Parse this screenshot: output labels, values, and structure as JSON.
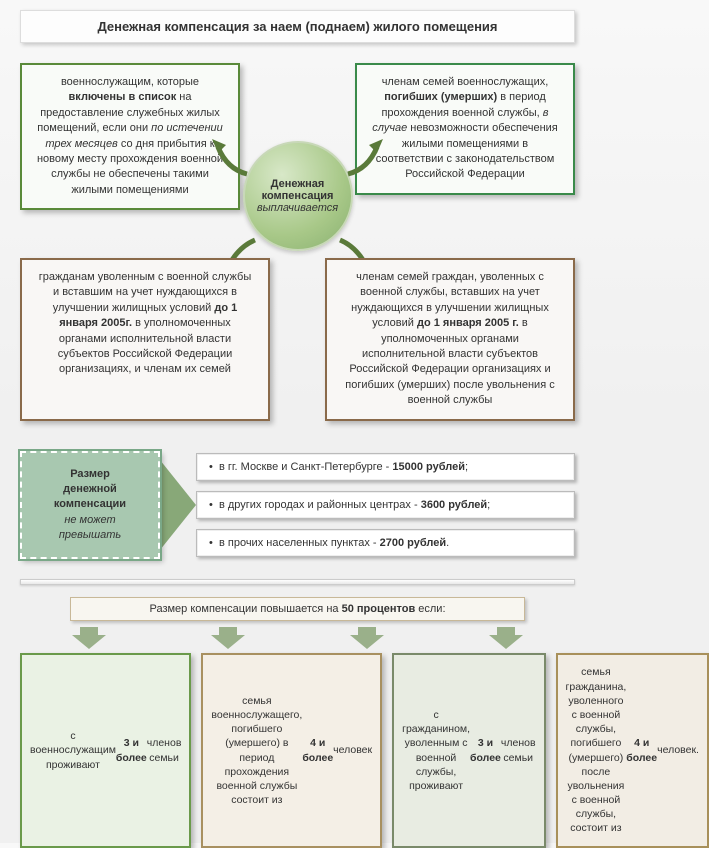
{
  "title": "Денежная компенсация за наем (поднаем) жилого помещения",
  "center": {
    "line1": "Денежная",
    "line2": "компенсация",
    "line3": "выплачивается"
  },
  "boxes": {
    "top_left": "военнослужащим, которые <strong>включены в список</strong> на предоставление служебных жилых помещений, если они <em>по истечении трех месяцев</em> со дня прибытия к новому месту прохождения военной службы не обеспечены такими жилыми помещениями",
    "top_right": "членам семей военнослужащих, <strong>погибших (умерших)</strong> в период прохождения военной службы, <em>в случае</em> невозможности обеспечения жилыми помещениями в соответствии с законодательством Российской Федерации",
    "bottom_left": "гражданам уволенным с военной службы и вставшим на учет нуждающихся в улучшении жилищных условий <strong>до 1 января 2005г.</strong> в уполномоченных органами исполнительной власти субъектов Российской Федерации организациях, и членам их семей",
    "bottom_right": "членам семей граждан, уволенных с военной службы, вставших на учет нуждающихся в улучшении жилищных условий <strong>до 1 января 2005 г.</strong> в уполномоченных органами исполнительной власти субъектов Российской Федерации организациях и погибших (умерших) после увольнения с военной службы"
  },
  "limits_title": {
    "l1": "Размер",
    "l2": "денежной",
    "l3": "компенсации",
    "l4": "не может превышать"
  },
  "limits": [
    "в гг. Москве и Санкт-Петербурге - <strong>15000 рублей</strong>;",
    "в других городах и районных центрах - <strong>3600 рублей</strong>;",
    "в прочих населенных пунктах - <strong>2700 рублей</strong>."
  ],
  "increase_text": "Размер компенсации повышается на <strong>50 процентов</strong> если:",
  "conditions": [
    "с военнослужащим проживают <strong>3 и более</strong> членов семьи",
    "семья военнослужащего, погибшего (умершего) в период прохождения военной службы состоит из <strong>4 и более</strong> человек",
    "с  гражданином, уволенным с военной службы, проживают <strong>3 и более</strong> членов семьи",
    "семья гражданина, уволенного с военной службы, погибшего (умершего) после увольнения с военной службы, состоит из <strong>4 и более</strong> человек."
  ],
  "colors": {
    "arrow_green": "#6a9a4a",
    "arrow_dark": "#5a7a4a"
  }
}
